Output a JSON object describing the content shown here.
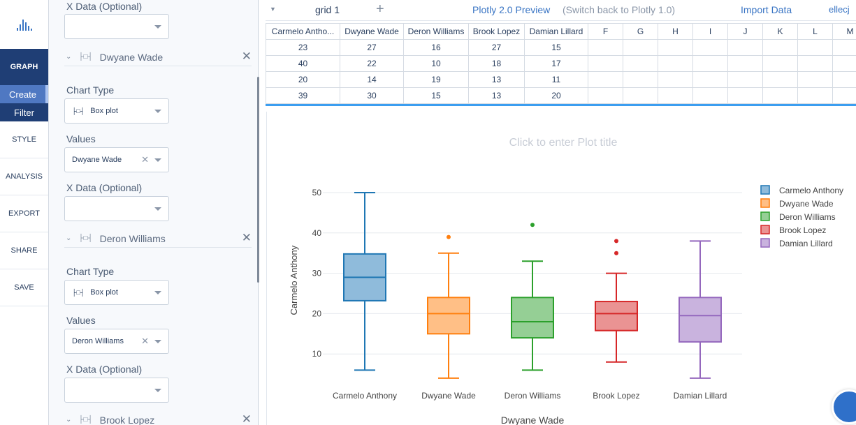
{
  "nav": {
    "graph": "GRAPH",
    "create": "Create",
    "filter": "Filter",
    "items": [
      "STYLE",
      "ANALYSIS",
      "EXPORT",
      "SHARE",
      "SAVE"
    ]
  },
  "panel": {
    "xdata_label": "X Data (Optional)",
    "chart_type_label": "Chart Type",
    "values_label": "Values",
    "chart_type_value": "Box plot",
    "traces": [
      {
        "name": "Dwyane Wade",
        "values": "Dwyane Wade"
      },
      {
        "name": "Deron Williams",
        "values": "Deron Williams"
      },
      {
        "name": "Brook Lopez"
      }
    ]
  },
  "topbar": {
    "grid_tab": "grid 1",
    "add": "+",
    "preview": "Plotly 2.0 Preview",
    "switch_back": "(Switch back to Plotly 1.0)",
    "import": "Import Data",
    "user": "ellecj"
  },
  "grid": {
    "headers": [
      "Carmelo Antho...",
      "Dwyane Wade",
      "Deron Williams",
      "Brook Lopez",
      "Damian Lillard",
      "F",
      "G",
      "H",
      "I",
      "J",
      "K",
      "L",
      "M"
    ],
    "rows": [
      [
        "23",
        "27",
        "16",
        "27",
        "15"
      ],
      [
        "40",
        "22",
        "10",
        "18",
        "17"
      ],
      [
        "20",
        "14",
        "19",
        "13",
        "11"
      ],
      [
        "39",
        "30",
        "15",
        "13",
        "20"
      ]
    ]
  },
  "chart_data": {
    "type": "box",
    "title": "Click to enter Plot title",
    "xlabel": "Dwyane Wade",
    "ylabel": "Carmelo Anthony",
    "ylim": [
      0,
      52
    ],
    "yticks": [
      10,
      20,
      30,
      40,
      50
    ],
    "categories": [
      "Carmelo Anthony",
      "Dwyane Wade",
      "Deron Williams",
      "Brook Lopez",
      "Damian Lillard"
    ],
    "series": [
      {
        "name": "Carmelo Anthony",
        "color": "#1f77b4",
        "fill": "#8fbbdb",
        "whisker_low": 6,
        "q1": 23.2,
        "median": 29,
        "q3": 34.8,
        "whisker_high": 50,
        "outliers": []
      },
      {
        "name": "Dwyane Wade",
        "color": "#ff7f0e",
        "fill": "#ffbf86",
        "whisker_low": 4,
        "q1": 15,
        "median": 20,
        "q3": 24,
        "whisker_high": 35,
        "outliers": [
          39
        ]
      },
      {
        "name": "Deron Williams",
        "color": "#2ca02c",
        "fill": "#95cf95",
        "whisker_low": 6,
        "q1": 14,
        "median": 18,
        "q3": 24,
        "whisker_high": 33,
        "outliers": [
          42
        ]
      },
      {
        "name": "Brook Lopez",
        "color": "#d62728",
        "fill": "#ea9393",
        "whisker_low": 8,
        "q1": 15.8,
        "median": 20,
        "q3": 23,
        "whisker_high": 30,
        "outliers": [
          35,
          38
        ]
      },
      {
        "name": "Damian Lillard",
        "color": "#9467bd",
        "fill": "#c9b3de",
        "whisker_low": 4,
        "q1": 13,
        "median": 19.5,
        "q3": 24,
        "whisker_high": 38,
        "outliers": []
      }
    ],
    "legend_position": "top-right",
    "grid": true
  }
}
